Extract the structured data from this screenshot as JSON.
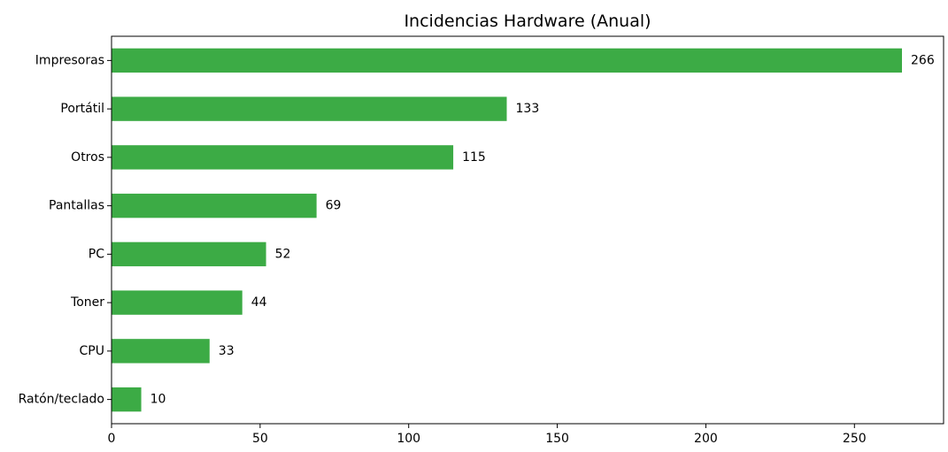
{
  "chart_data": {
    "type": "bar",
    "orientation": "horizontal",
    "title": "Incidencias Hardware (Anual)",
    "xlabel": "",
    "ylabel": "",
    "categories": [
      "Impresoras",
      "Portátil",
      "Otros",
      "Pantallas",
      "PC",
      "Toner",
      "CPU",
      "Ratón/teclado"
    ],
    "values": [
      266,
      133,
      115,
      69,
      52,
      44,
      33,
      10
    ],
    "xlim": [
      0,
      280
    ],
    "xticks": [
      0,
      50,
      100,
      150,
      200,
      250
    ],
    "grid": false,
    "legend": false,
    "data_labels": true,
    "bar_color": "#3cab45"
  }
}
